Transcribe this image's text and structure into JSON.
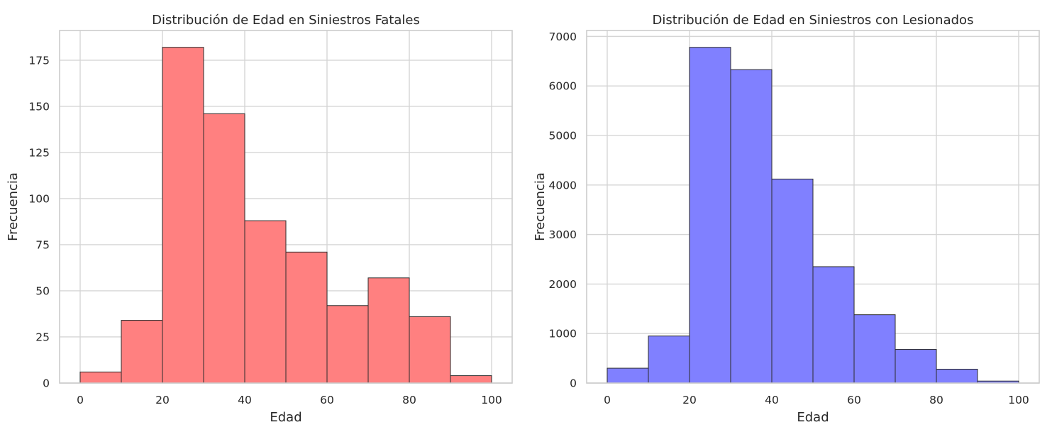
{
  "chart_data": [
    {
      "type": "bar",
      "title": "Distribución de Edad en Siniestros Fatales",
      "xlabel": "Edad",
      "ylabel": "Frecuencia",
      "color": "#ff8080",
      "bin_edges": [
        0,
        10,
        20,
        30,
        40,
        50,
        60,
        70,
        80,
        90,
        100
      ],
      "values": [
        6,
        34,
        182,
        146,
        88,
        71,
        42,
        57,
        36,
        4
      ],
      "xticks": [
        0,
        20,
        40,
        60,
        80,
        100
      ],
      "xtick_labels": [
        "0",
        "20",
        "40",
        "60",
        "80",
        "100"
      ],
      "yticks": [
        0,
        25,
        50,
        75,
        100,
        125,
        150,
        175
      ],
      "ytick_labels": [
        "0",
        "25",
        "50",
        "75",
        "100",
        "125",
        "150",
        "175"
      ],
      "xlim": [
        -5,
        105
      ],
      "ylim": [
        0,
        191.1
      ],
      "grid": true
    },
    {
      "type": "bar",
      "title": "Distribución de Edad en Siniestros con Lesionados",
      "xlabel": "Edad",
      "ylabel": "Frecuencia",
      "color": "#8080ff",
      "bin_edges": [
        0,
        10,
        20,
        30,
        40,
        50,
        60,
        70,
        80,
        90,
        100
      ],
      "values": [
        300,
        950,
        6780,
        6330,
        4120,
        2350,
        1380,
        680,
        280,
        40
      ],
      "xticks": [
        0,
        20,
        40,
        60,
        80,
        100
      ],
      "xtick_labels": [
        "0",
        "20",
        "40",
        "60",
        "80",
        "100"
      ],
      "yticks": [
        0,
        1000,
        2000,
        3000,
        4000,
        5000,
        6000,
        7000
      ],
      "ytick_labels": [
        "0",
        "1000",
        "2000",
        "3000",
        "4000",
        "5000",
        "6000",
        "7000"
      ],
      "xlim": [
        -5,
        105
      ],
      "ylim": [
        0,
        7120
      ],
      "grid": true
    }
  ]
}
